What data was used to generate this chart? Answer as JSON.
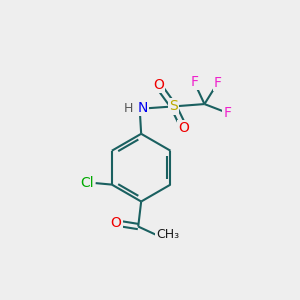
{
  "background_color": "#eeeeee",
  "bond_color": "#1a6060",
  "bond_width": 1.5,
  "atom_colors": {
    "N": "#0000ee",
    "S": "#bbaa00",
    "O": "#ee0000",
    "F": "#ee22cc",
    "Cl": "#00aa00",
    "H": "#555555",
    "C": "#1a1a1a"
  },
  "font_size": 10,
  "fig_size": [
    3.0,
    3.0
  ],
  "dpi": 100,
  "xlim": [
    0,
    10
  ],
  "ylim": [
    0,
    10
  ]
}
